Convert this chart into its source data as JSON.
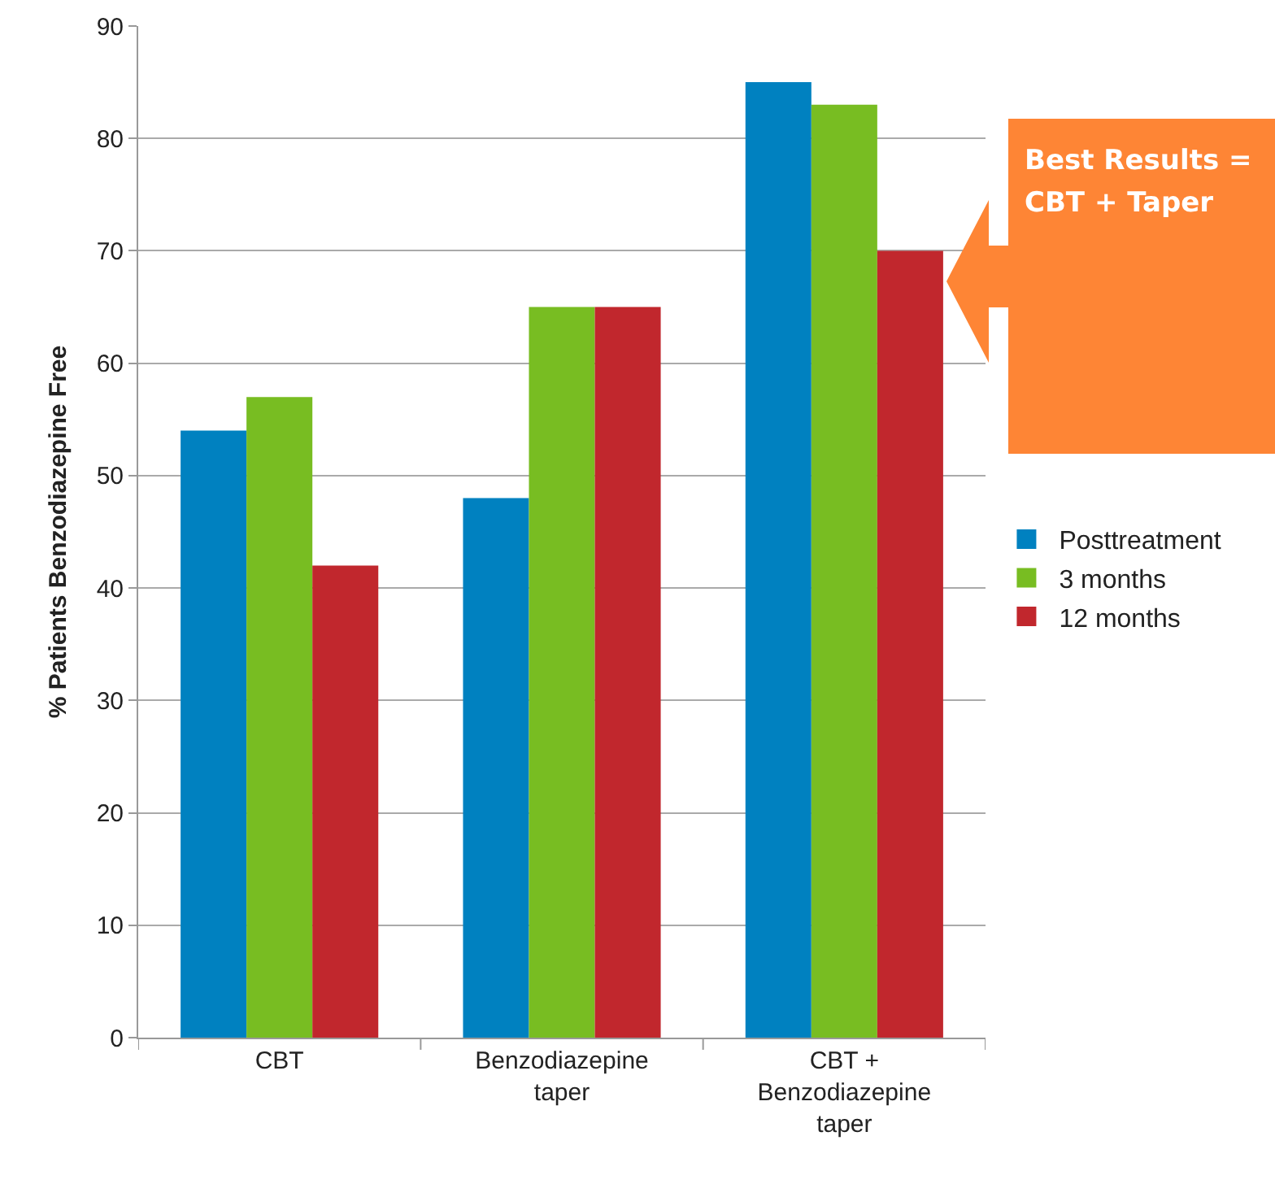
{
  "chart_data": {
    "type": "bar",
    "ylabel": "% Patients Benzodiazepine Free",
    "categories": [
      "CBT",
      "Benzodiazepine taper",
      "CBT + Benzodiazepine taper"
    ],
    "series": [
      {
        "name": "Posttreatment",
        "color": "#0081c0",
        "values": [
          54,
          48,
          85
        ]
      },
      {
        "name": "3 months",
        "color": "#78bd22",
        "values": [
          57,
          65,
          83
        ]
      },
      {
        "name": "12 months",
        "color": "#c1272d",
        "values": [
          42,
          65,
          70
        ]
      }
    ],
    "ylim": [
      0,
      90
    ],
    "yticks": [
      0,
      10,
      20,
      30,
      40,
      50,
      60,
      70,
      80,
      90
    ],
    "grid": "y",
    "legend": "right",
    "annotations": [
      "Best Results = CBT + Taper"
    ]
  }
}
